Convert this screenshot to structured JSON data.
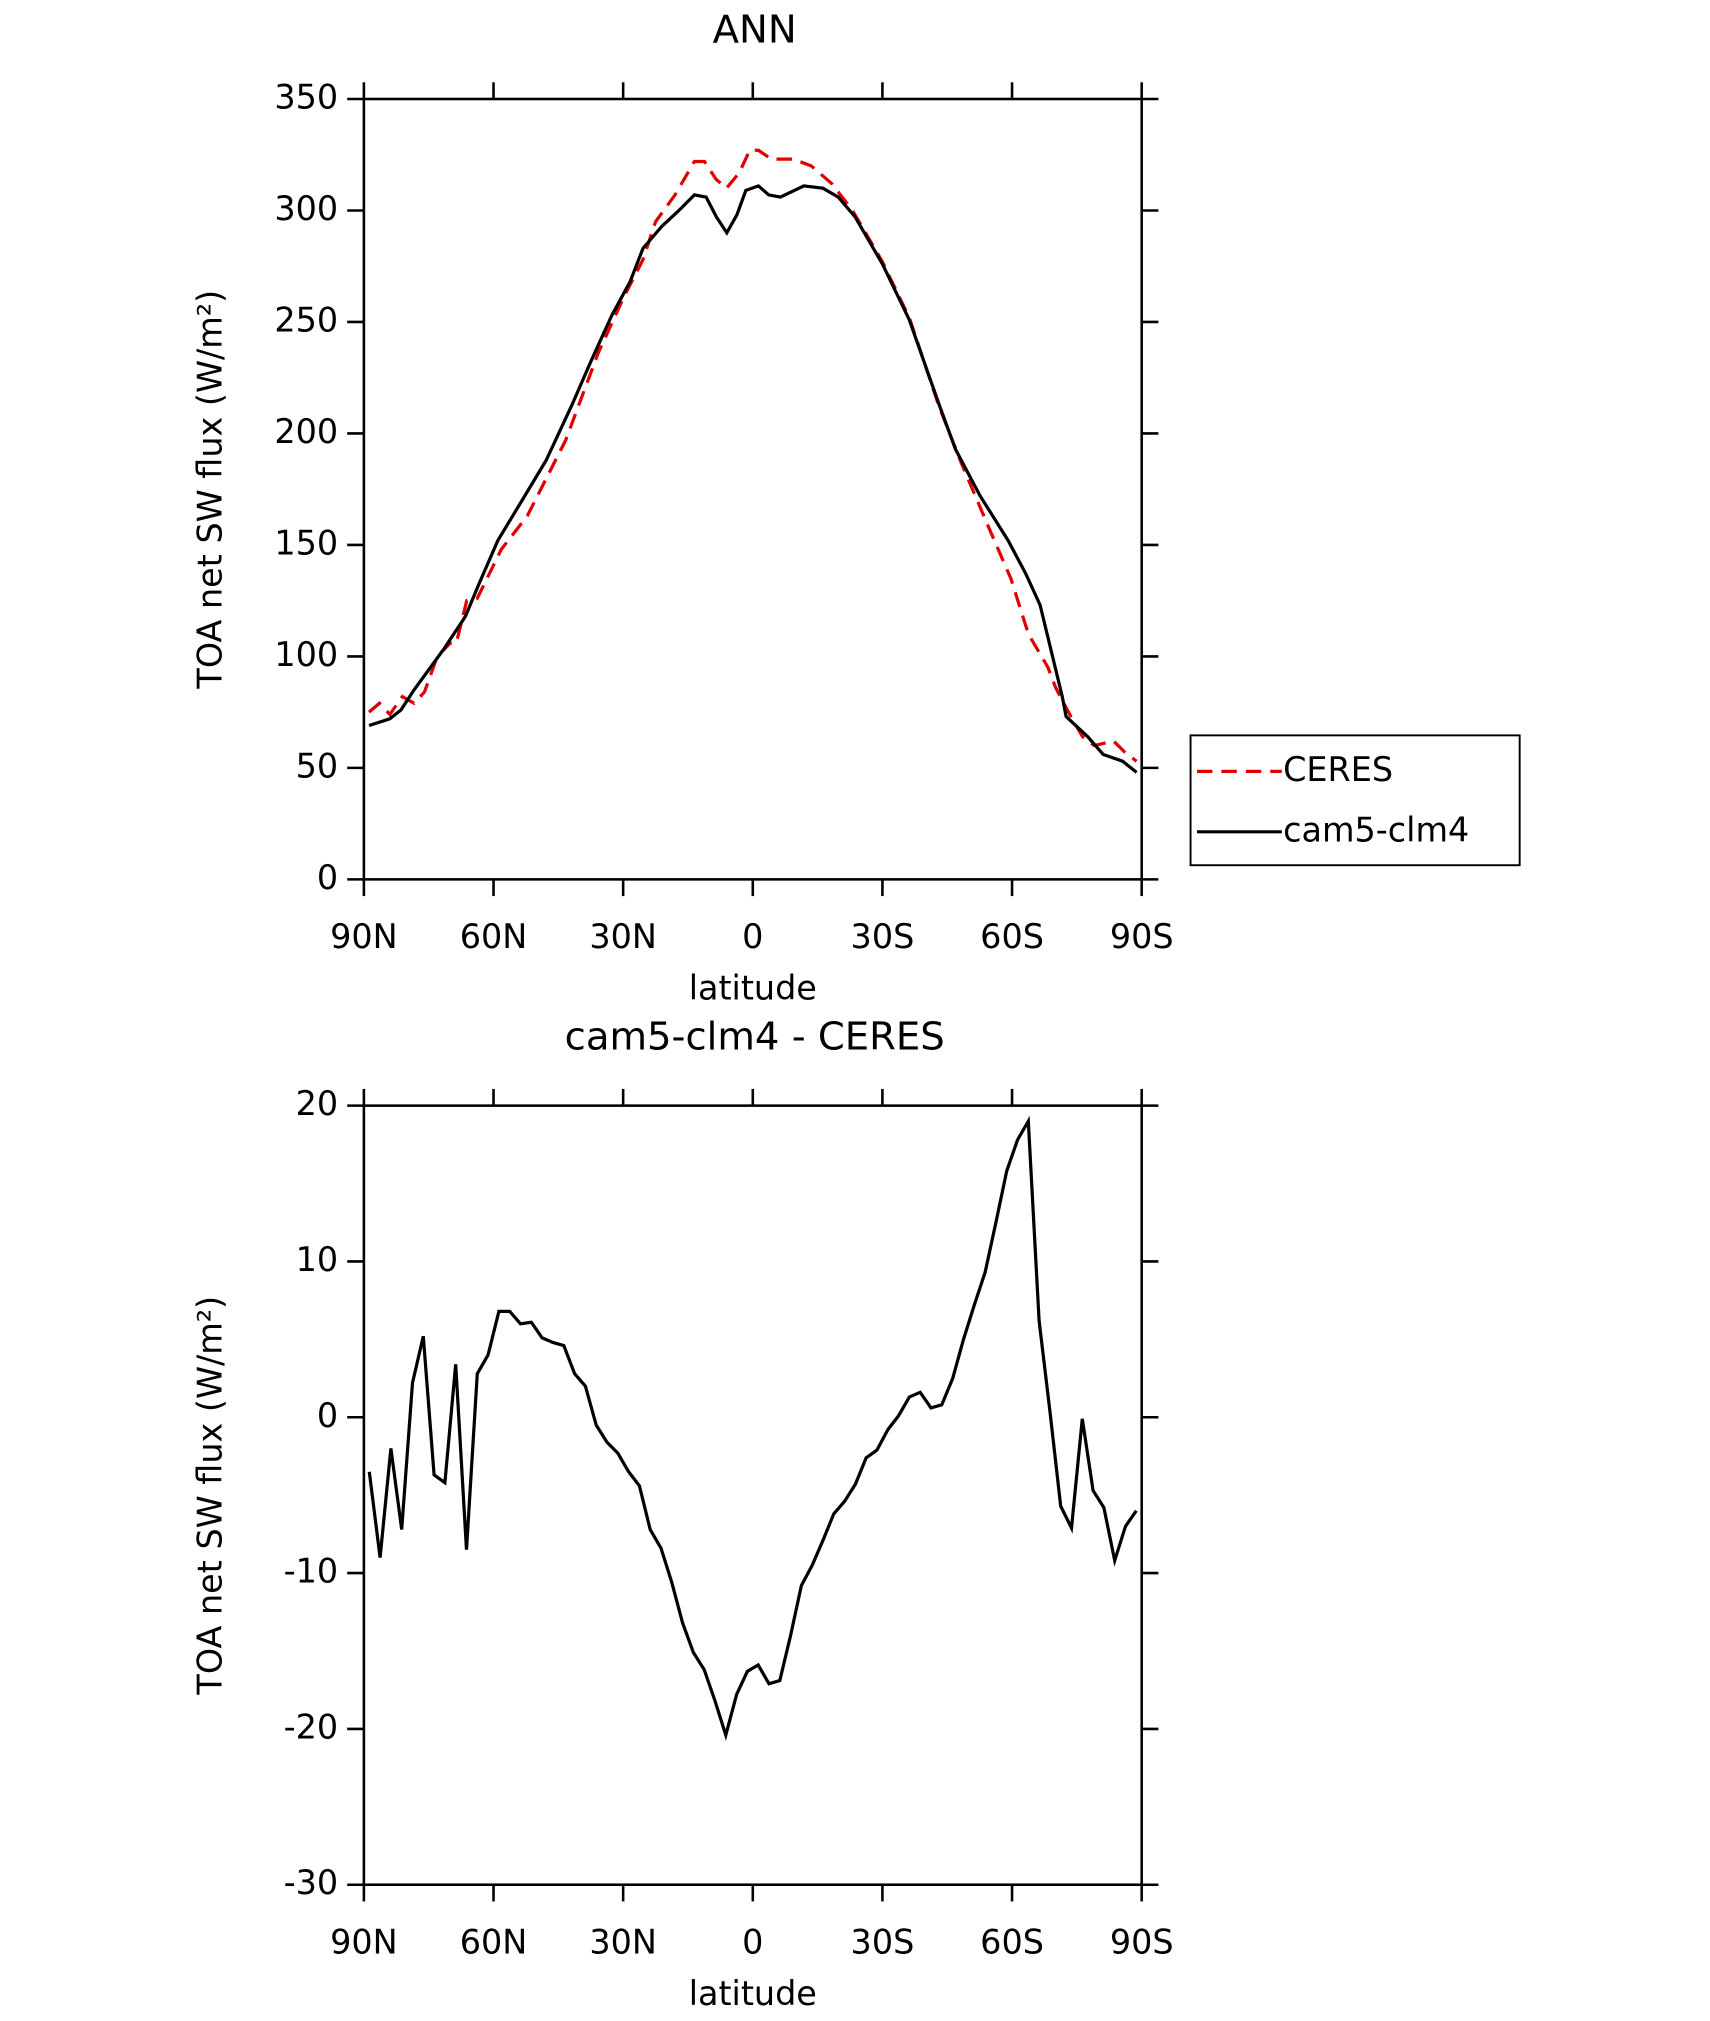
{
  "chart_data": [
    {
      "type": "line",
      "title": "ANN",
      "xlabel": "latitude",
      "ylabel": "TOA net SW flux (W/m²)",
      "xlim": [
        90,
        -90
      ],
      "xticks": [
        {
          "value": 90,
          "label": "90N"
        },
        {
          "value": 60,
          "label": "60N"
        },
        {
          "value": 30,
          "label": "30N"
        },
        0,
        {
          "value": -30,
          "label": "30S"
        },
        {
          "value": -60,
          "label": "60S"
        },
        {
          "value": -90,
          "label": "90S"
        }
      ],
      "ylim": [
        0,
        350
      ],
      "yticks": [
        0,
        50,
        100,
        150,
        200,
        250,
        300,
        350
      ],
      "legend": "right",
      "series": [
        {
          "name": "CERES",
          "color": "#e00000",
          "dash": true,
          "x": [
            88.8,
            86.4,
            84.0,
            81.1,
            78.4,
            76.0,
            73.0,
            70.0,
            68.6,
            66.2,
            63.8,
            58.2,
            52.2,
            43.3,
            35.8,
            29.9,
            25.4,
            22.5,
            18.0,
            13.5,
            11.2,
            8.5,
            6.1,
            3.1,
            0.7,
            -1.3,
            -4.3,
            -9.4,
            -13.5,
            -18.3,
            -23.1,
            -30.0,
            -36.2,
            -43.1,
            -48.4,
            -55.0,
            -59.7,
            -63.8,
            -68.3,
            -70.1,
            -73.6,
            -76.3,
            -79.0,
            -83.5,
            -86.1,
            -88.8
          ],
          "values": [
            75,
            79,
            74,
            82,
            79,
            84,
            100,
            106,
            106,
            125,
            126,
            148,
            163,
            197,
            236,
            261,
            278,
            295,
            307,
            322,
            322,
            314,
            310,
            317,
            327,
            327,
            323,
            323,
            320,
            312,
            300,
            277,
            252,
            212,
            186,
            156,
            135,
            110,
            95,
            86,
            73,
            64,
            60,
            62,
            57,
            53
          ]
        },
        {
          "name": "cam5-clm4",
          "color": "#000000",
          "dash": false,
          "x": [
            88.8,
            84.0,
            81.4,
            78.4,
            71.6,
            66.5,
            63.5,
            59.0,
            54.0,
            47.8,
            41.8,
            37.3,
            32.6,
            28.4,
            25.4,
            21.0,
            17.1,
            13.5,
            10.8,
            8.4,
            6.0,
            3.7,
            1.6,
            -1.3,
            -3.7,
            -6.4,
            -11.8,
            -16.2,
            -19.8,
            -23.7,
            -30.0,
            -36.2,
            -43.1,
            -46.9,
            -52.6,
            -59.1,
            -63.2,
            -66.5,
            -71.6,
            -72.5,
            -77.5,
            -81.1,
            -85.6,
            -88.8
          ],
          "values": [
            69,
            72,
            76,
            85,
            103,
            118,
            132,
            152,
            168,
            188,
            213,
            233,
            253,
            268,
            283,
            293,
            300,
            307,
            306,
            297,
            290,
            298,
            309,
            311,
            307,
            306,
            311,
            310,
            306,
            297,
            276,
            251,
            213,
            193,
            172,
            152,
            137,
            123,
            82,
            73,
            64,
            56,
            53,
            48
          ]
        }
      ]
    },
    {
      "type": "line",
      "title": "cam5-clm4 - CERES",
      "xlabel": "latitude",
      "ylabel": "TOA net SW flux (W/m²)",
      "xlim": [
        90,
        -90
      ],
      "xticks": [
        {
          "value": 90,
          "label": "90N"
        },
        {
          "value": 60,
          "label": "60N"
        },
        {
          "value": 30,
          "label": "30N"
        },
        0,
        {
          "value": -30,
          "label": "30S"
        },
        {
          "value": -60,
          "label": "60S"
        },
        {
          "value": -90,
          "label": "90S"
        }
      ],
      "ylim": [
        -30,
        20
      ],
      "yticks": [
        -30,
        -20,
        -10,
        0,
        10,
        20
      ],
      "series": [
        {
          "color": "#000000",
          "dash": false,
          "x": [
            88.75,
            86.25,
            83.75,
            81.25,
            78.75,
            76.25,
            73.75,
            71.25,
            68.75,
            66.25,
            63.75,
            61.25,
            58.75,
            56.25,
            53.75,
            51.25,
            48.75,
            46.25,
            43.75,
            41.25,
            38.75,
            36.25,
            33.75,
            31.25,
            28.75,
            26.25,
            23.75,
            21.25,
            18.75,
            16.25,
            13.75,
            11.25,
            8.75,
            6.25,
            3.75,
            1.25,
            -1.25,
            -3.75,
            -6.25,
            -8.75,
            -11.25,
            -13.75,
            -16.25,
            -18.75,
            -21.25,
            -23.75,
            -26.25,
            -28.75,
            -31.25,
            -33.75,
            -36.25,
            -38.75,
            -41.25,
            -43.75,
            -46.25,
            -48.75,
            -51.25,
            -53.75,
            -56.25,
            -58.75,
            -61.25,
            -63.75,
            -66.25,
            -68.75,
            -71.25,
            -73.75,
            -76.25,
            -78.75,
            -81.25,
            -83.75,
            -86.25,
            -88.75
          ],
          "values": [
            -3.5,
            -9,
            -2,
            -7.2,
            2.2,
            5.2,
            -3.7,
            -4.2,
            3.4,
            -8.5,
            2.8,
            4,
            6.8,
            6.8,
            6,
            6.1,
            5.1,
            4.8,
            4.6,
            2.8,
            2,
            -0.5,
            -1.6,
            -2.3,
            -3.5,
            -4.4,
            -7.2,
            -8.4,
            -10.6,
            -13.2,
            -15.1,
            -16.2,
            -18.2,
            -20.4,
            -17.8,
            -16.3,
            -15.9,
            -17.1,
            -16.9,
            -14,
            -10.8,
            -9.5,
            -7.9,
            -6.2,
            -5.4,
            -4.3,
            -2.6,
            -2.1,
            -0.8,
            0.1,
            1.3,
            1.6,
            0.6,
            0.8,
            2.5,
            5,
            7.2,
            9.3,
            12.5,
            15.8,
            17.8,
            19,
            6.2,
            0.4,
            -5.7,
            -7.1,
            -0.1,
            -4.7,
            -5.8,
            -9.2,
            -7,
            -6
          ]
        }
      ]
    }
  ]
}
